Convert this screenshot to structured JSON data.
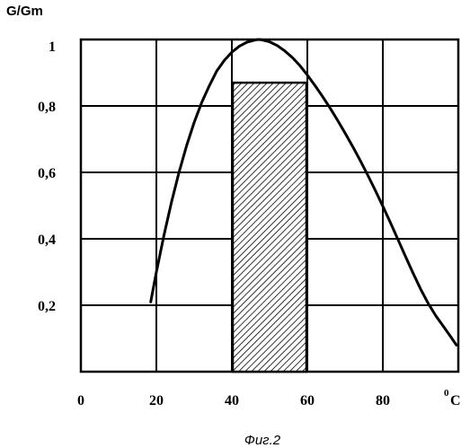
{
  "chart_data": {
    "type": "line",
    "ylabel": "G/Gm",
    "xunit_sup": "0",
    "xunit": "C",
    "xlim": [
      0,
      100
    ],
    "ylim": [
      0,
      1
    ],
    "grid": true,
    "x_ticks": [
      {
        "value": 0,
        "label": "0"
      },
      {
        "value": 20,
        "label": "20"
      },
      {
        "value": 40,
        "label": "40"
      },
      {
        "value": 60,
        "label": "60"
      },
      {
        "value": 80,
        "label": "80"
      }
    ],
    "y_ticks": [
      {
        "value": 0.2,
        "label": "0,2"
      },
      {
        "value": 0.4,
        "label": "0,4"
      },
      {
        "value": 0.6,
        "label": "0,6"
      },
      {
        "value": 0.8,
        "label": "0,8"
      },
      {
        "value": 1.0,
        "label": "1"
      }
    ],
    "series": [
      {
        "x": [
          18.5,
          20,
          22,
          24,
          26,
          28,
          30,
          32,
          34,
          36,
          38,
          40,
          42,
          44,
          46,
          47,
          48,
          50,
          52,
          54,
          56,
          58,
          60,
          62,
          64,
          66,
          68,
          70,
          72,
          74,
          76,
          78,
          80,
          82,
          84,
          86,
          88,
          90,
          92,
          94,
          96,
          98,
          99.5
        ],
        "y": [
          0.21,
          0.3,
          0.41,
          0.51,
          0.6,
          0.68,
          0.75,
          0.81,
          0.86,
          0.905,
          0.937,
          0.962,
          0.98,
          0.992,
          0.998,
          1.0,
          0.999,
          0.993,
          0.982,
          0.966,
          0.946,
          0.922,
          0.893,
          0.862,
          0.829,
          0.794,
          0.757,
          0.718,
          0.678,
          0.636,
          0.592,
          0.546,
          0.498,
          0.449,
          0.398,
          0.347,
          0.297,
          0.249,
          0.206,
          0.169,
          0.137,
          0.105,
          0.08
        ]
      }
    ],
    "shaded_band": {
      "x_start": 40,
      "x_end": 60,
      "y_top": 0.87,
      "pattern": "diagonal-hatch"
    }
  },
  "caption": "Фиг.2"
}
